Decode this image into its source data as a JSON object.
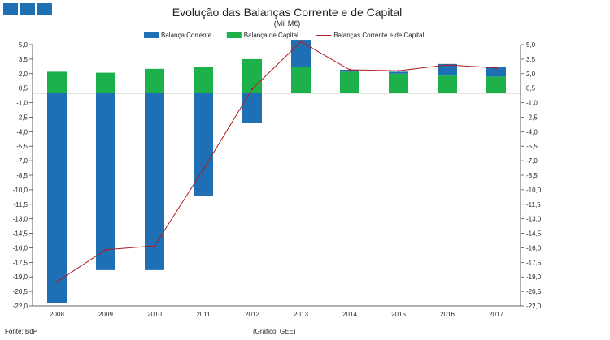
{
  "chart_data": {
    "type": "bar",
    "title": "Evolução das Balanças Corrente e de Capital",
    "subtitle": "(Mil M€)",
    "categories": [
      "2008",
      "2009",
      "2010",
      "2011",
      "2012",
      "2013",
      "2014",
      "2015",
      "2016",
      "2017"
    ],
    "series": [
      {
        "name": "Balança Corrente",
        "kind": "bar",
        "color": "#1f6fb4",
        "values": [
          -21.7,
          -18.3,
          -18.3,
          -10.6,
          -3.1,
          5.5,
          2.4,
          2.2,
          3.0,
          2.7
        ]
      },
      {
        "name": "Balança de Capital",
        "kind": "bar",
        "color": "#1db14b",
        "values": [
          2.2,
          2.1,
          2.5,
          2.7,
          3.5,
          2.7,
          2.2,
          2.0,
          1.8,
          1.7
        ]
      },
      {
        "name": "Balanças Corrente e de Capital",
        "kind": "line",
        "color": "#b01e1e",
        "values": [
          -19.5,
          -16.2,
          -15.8,
          -7.9,
          0.4,
          5.3,
          2.4,
          2.3,
          2.9,
          2.6
        ]
      }
    ],
    "yticks": [
      "5,0",
      "3,5",
      "2,0",
      "0,5",
      "-1,0",
      "-2,5",
      "-4,0",
      "-5,5",
      "-7,0",
      "-8,5",
      "-10,0",
      "-11,5",
      "-13,0",
      "-14,5",
      "-16,0",
      "-17,5",
      "-19,0",
      "-20,5",
      "-22,0"
    ],
    "ylim": [
      -22.0,
      5.0
    ],
    "legend_position": "top"
  },
  "footer": {
    "source": "Fonte: BdP",
    "credit": "(Gráfico: GEE)"
  }
}
